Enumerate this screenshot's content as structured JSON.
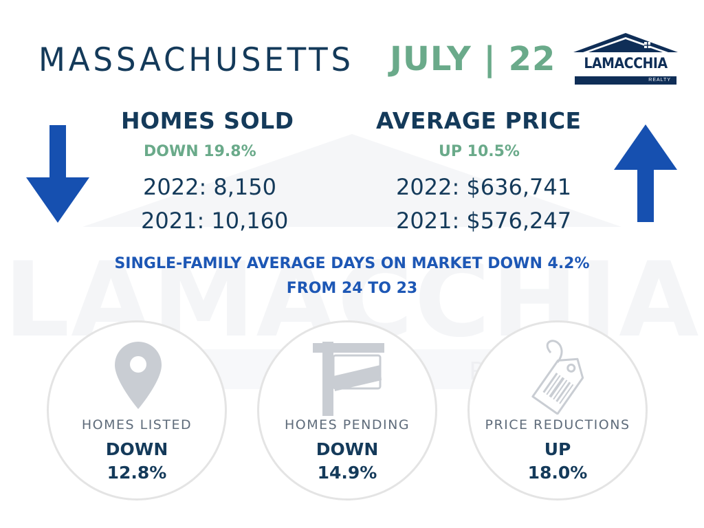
{
  "header": {
    "state": "MASSACHUSETTS",
    "period": "JULY | 22"
  },
  "logo": {
    "name": "LAMACCHIA",
    "sub": "REALTY",
    "color": "#0f2e57"
  },
  "homes_sold": {
    "title": "HOMES SOLD",
    "change": "DOWN 19.8%",
    "line_2022": "2022: 8,150",
    "line_2021": "2021: 10,160",
    "direction": "down",
    "icon": "arrow-down-icon"
  },
  "average_price": {
    "title": "AVERAGE PRICE",
    "change": "UP 10.5%",
    "line_2022": "2022: $636,741",
    "line_2021": "2021: $576,247",
    "direction": "up",
    "icon": "arrow-up-icon"
  },
  "days_on_market": {
    "line1": "SINGLE-FAMILY AVERAGE DAYS ON MARKET DOWN 4.2%",
    "line2": "FROM 24 TO 23"
  },
  "metrics": [
    {
      "label": "HOMES LISTED",
      "direction": "DOWN",
      "value": "12.8%",
      "icon": "map-pin-icon"
    },
    {
      "label": "HOMES PENDING",
      "direction": "DOWN",
      "value": "14.9%",
      "icon": "for-sale-sign-icon"
    },
    {
      "label": "PRICE REDUCTIONS",
      "direction": "UP",
      "value": "18.0%",
      "icon": "price-tag-icon"
    }
  ],
  "watermark": {
    "name": "LAMACCHIA",
    "sub": "REALTY"
  },
  "colors": {
    "navy": "#143a5a",
    "green": "#6aaa8a",
    "blue": "#1d57b5",
    "arrow_blue": "#1650b0",
    "icon_gray": "#c9cdd3"
  }
}
